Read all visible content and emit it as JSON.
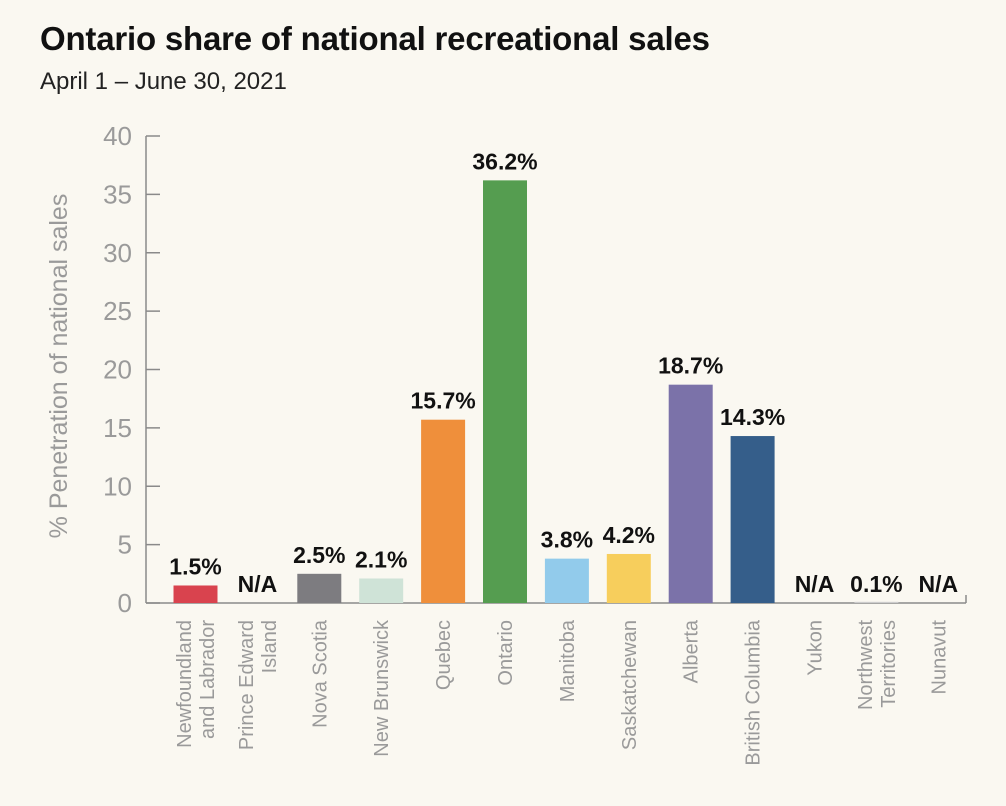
{
  "title": "Ontario share of national recreational sales",
  "subtitle": "April 1  –  June 30, 2021",
  "chart_data": {
    "type": "bar",
    "title": "Ontario share of national recreational sales",
    "subtitle": "April 1  –  June 30, 2021",
    "xlabel": "",
    "ylabel": "% Penetration of national sales",
    "ylim": [
      0,
      40
    ],
    "yticks": [
      0,
      5,
      10,
      15,
      20,
      25,
      30,
      35,
      40
    ],
    "grid": false,
    "legend": "none",
    "categories": [
      "Newfoundland and Labrador",
      "Prince Edward Island",
      "Nova Scotia",
      "New Brunswick",
      "Quebec",
      "Ontario",
      "Manitoba",
      "Saskatchewan",
      "Alberta",
      "British Columbia",
      "Yukon",
      "Northwest Territories",
      "Nunavut"
    ],
    "category_label_lines": [
      [
        "Newfoundland",
        "and Labrador"
      ],
      [
        "Prince Edward",
        "Island"
      ],
      [
        "Nova Scotia"
      ],
      [
        "New Brunswick"
      ],
      [
        "Quebec"
      ],
      [
        "Ontario"
      ],
      [
        "Manitoba"
      ],
      [
        "Saskatchewan"
      ],
      [
        "Alberta"
      ],
      [
        "British Columbia"
      ],
      [
        "Yukon"
      ],
      [
        "Northwest",
        "Territories"
      ],
      [
        "Nunavut"
      ]
    ],
    "values": [
      1.5,
      null,
      2.5,
      2.1,
      15.7,
      36.2,
      3.8,
      4.2,
      18.7,
      14.3,
      null,
      0.1,
      null
    ],
    "data_labels": [
      "1.5%",
      "N/A",
      "2.5%",
      "2.1%",
      "15.7%",
      "36.2%",
      "3.8%",
      "4.2%",
      "18.7%",
      "14.3%",
      "N/A",
      "0.1%",
      "N/A"
    ],
    "colors": [
      "#d9434e",
      "#cccccc",
      "#7d7c80",
      "#cfe3d7",
      "#ef8f3b",
      "#559d50",
      "#92cbeb",
      "#f7ce5c",
      "#7b72a9",
      "#355e8a",
      "#cccccc",
      "#cccccc",
      "#cccccc"
    ]
  }
}
